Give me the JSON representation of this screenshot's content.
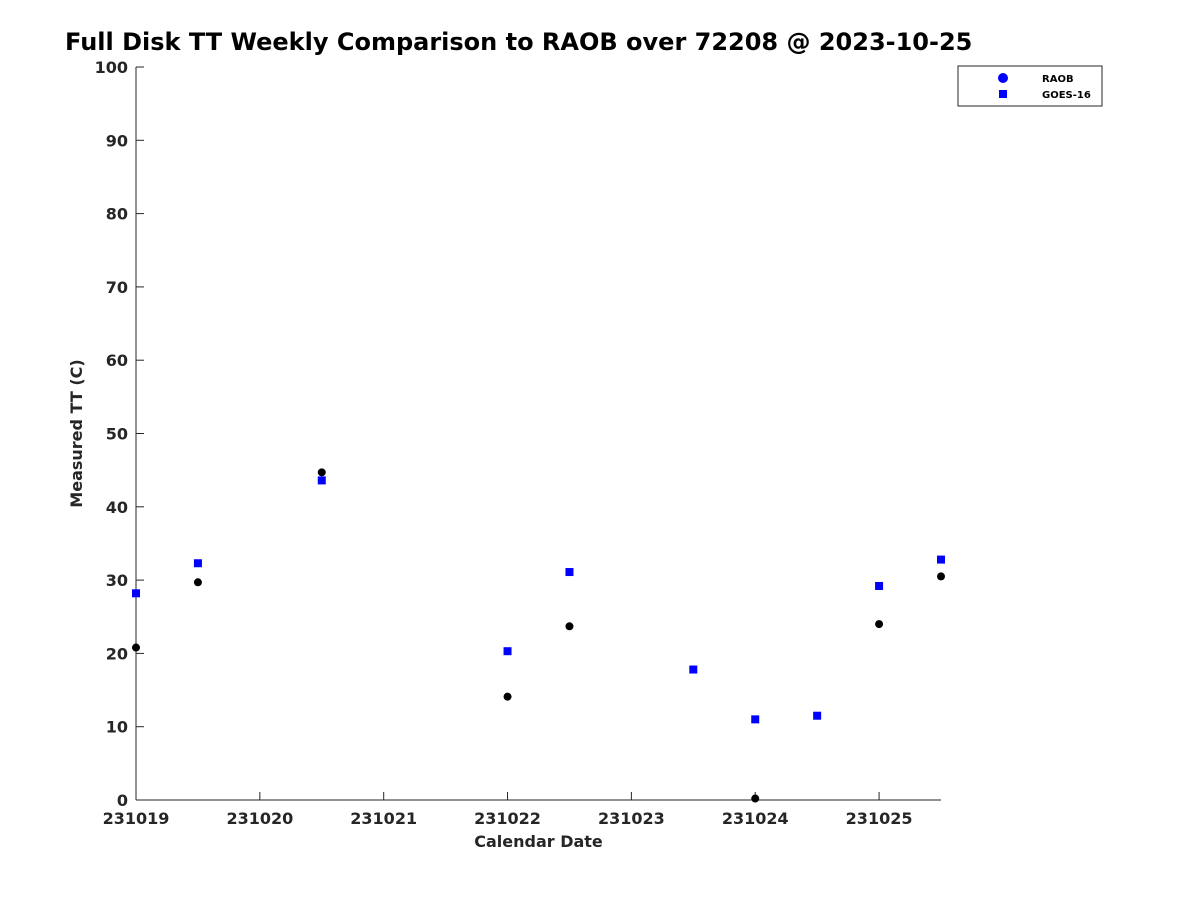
{
  "chart_data": {
    "type": "scatter",
    "title": "Full Disk TT Weekly Comparison to RAOB over 72208 @ 2023-10-25",
    "xlabel": "Calendar Date",
    "ylabel": "Measured TT (C)",
    "x_ticks": [
      "231019",
      "231020",
      "231021",
      "231022",
      "231023",
      "231024",
      "231025"
    ],
    "y_ticks": [
      "0",
      "10",
      "20",
      "30",
      "40",
      "50",
      "60",
      "70",
      "80",
      "90",
      "100"
    ],
    "xlim": [
      0,
      6.5
    ],
    "ylim": [
      0,
      100
    ],
    "grid": false,
    "legend_position": "top-right",
    "series": [
      {
        "name": "RAOB",
        "marker": "circle",
        "color": "#000000",
        "legend_color": "#0000ff",
        "points": [
          {
            "x": 0,
            "y": 20.8
          },
          {
            "x": 0.5,
            "y": 29.7
          },
          {
            "x": 1.5,
            "y": 44.7
          },
          {
            "x": 3,
            "y": 14.1
          },
          {
            "x": 3.5,
            "y": 23.7
          },
          {
            "x": 5,
            "y": 0.2
          },
          {
            "x": 6,
            "y": 24
          },
          {
            "x": 6.5,
            "y": 30.5
          }
        ]
      },
      {
        "name": "GOES-16",
        "marker": "square",
        "color": "#0000ff",
        "legend_color": "#0000ff",
        "points": [
          {
            "x": 0,
            "y": 28.2
          },
          {
            "x": 0.5,
            "y": 32.3
          },
          {
            "x": 1.5,
            "y": 43.6
          },
          {
            "x": 3,
            "y": 20.3
          },
          {
            "x": 3.5,
            "y": 31.1
          },
          {
            "x": 4.5,
            "y": 17.8
          },
          {
            "x": 5,
            "y": 11
          },
          {
            "x": 5.5,
            "y": 11.5
          },
          {
            "x": 6,
            "y": 29.2
          },
          {
            "x": 6.5,
            "y": 32.8
          }
        ]
      }
    ]
  }
}
